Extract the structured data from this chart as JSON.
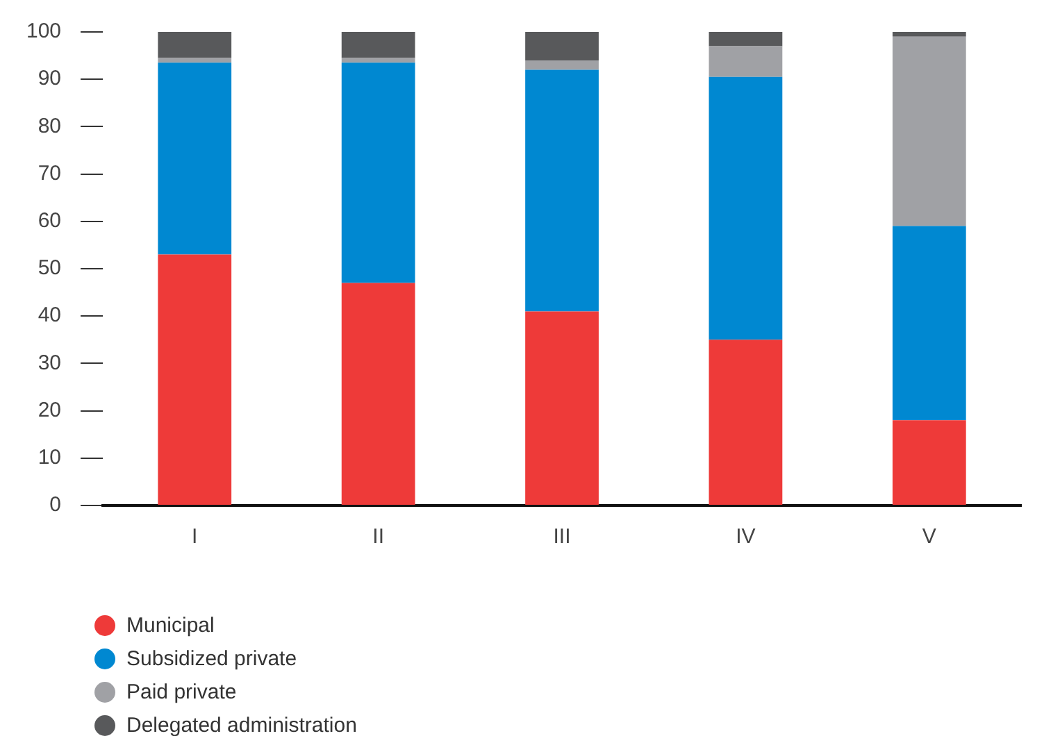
{
  "chart_data": {
    "type": "bar",
    "stacked": true,
    "categories": [
      "I",
      "II",
      "III",
      "IV",
      "V"
    ],
    "series": [
      {
        "name": "Municipal",
        "color": "#ee3a39",
        "values": [
          53,
          47,
          41,
          35,
          18
        ]
      },
      {
        "name": "Subsidized private",
        "color": "#0088d1",
        "values": [
          40.5,
          46.5,
          51,
          55.5,
          41
        ]
      },
      {
        "name": "Paid private",
        "color": "#a0a1a5",
        "values": [
          1,
          1,
          2,
          6.5,
          40
        ]
      },
      {
        "name": "Delegated administration",
        "color": "#58595b",
        "values": [
          5.5,
          5.5,
          6,
          3,
          1
        ]
      }
    ],
    "ylim": [
      0,
      100
    ],
    "yticks": [
      0,
      10,
      20,
      30,
      40,
      50,
      60,
      70,
      80,
      90,
      100
    ],
    "grid": false,
    "legend": "bottom left",
    "marker": "circle"
  }
}
